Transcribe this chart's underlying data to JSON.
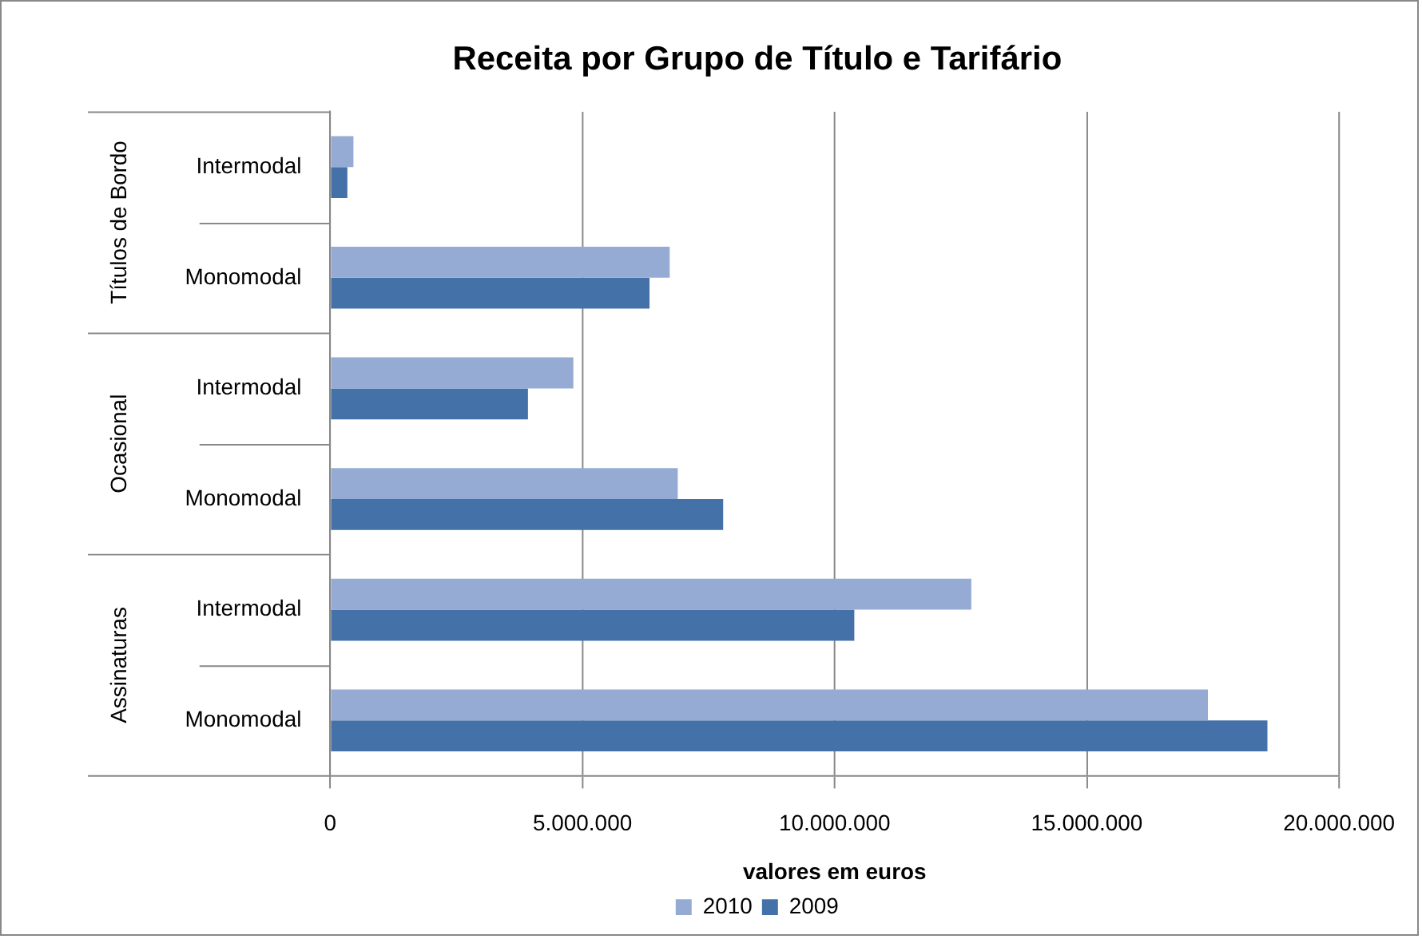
{
  "chart_data": {
    "type": "bar",
    "orientation": "horizontal",
    "title": "Receita por Grupo de Título e Tarifário",
    "xlabel": "valores em euros",
    "categories": [
      "Intermodal",
      "Monomodal",
      "Intermodal",
      "Monomodal",
      "Intermodal",
      "Monomodal"
    ],
    "annotations": [
      "Títulos de Bordo",
      "Ocasional",
      "Assinaturas"
    ],
    "series": [
      {
        "name": "2010",
        "color": "#95abd3",
        "values": [
          460000,
          6730000,
          4820000,
          6890000,
          12710000,
          17400000
        ]
      },
      {
        "name": "2009",
        "color": "#4472a8",
        "values": [
          340000,
          6330000,
          3920000,
          7790000,
          10390000,
          18580000
        ]
      }
    ],
    "xlim": [
      0,
      20000000
    ],
    "xticks": [
      {
        "value": 0,
        "label": "0"
      },
      {
        "value": 5000000,
        "label": "5.000.000"
      },
      {
        "value": 10000000,
        "label": "10.000.000"
      },
      {
        "value": 15000000,
        "label": "15.000.000"
      },
      {
        "value": 20000000,
        "label": "20.000.000"
      }
    ],
    "grid": "x",
    "legend": "bottom"
  }
}
